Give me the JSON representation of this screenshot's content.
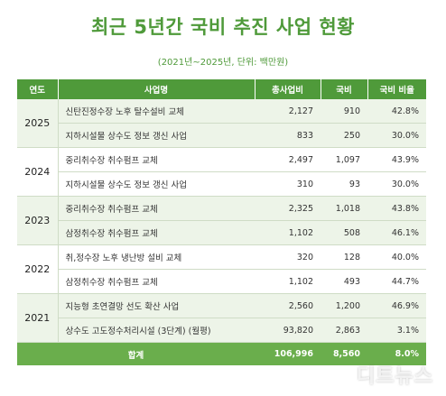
{
  "title": "최근 5년간 국비 추진 사업 현황",
  "subtitle": "(2021년~2025년, 단위: 백만원)",
  "columns": [
    "연도",
    "사업명",
    "총사업비",
    "국비",
    "국비 비율"
  ],
  "groups": [
    {
      "year": "2025",
      "rows": [
        {
          "name": "신탄진정수장 노후 탈수설비 교체",
          "total": "2,127",
          "national": "910",
          "ratio": "42.8%"
        },
        {
          "name": "지하시설물 상수도 정보 갱신 사업",
          "total": "833",
          "national": "250",
          "ratio": "30.0%"
        }
      ]
    },
    {
      "year": "2024",
      "rows": [
        {
          "name": "중리취수장 취수펌프 교체",
          "total": "2,497",
          "national": "1,097",
          "ratio": "43.9%"
        },
        {
          "name": "지하시설물 상수도 정보 갱신 사업",
          "total": "310",
          "national": "93",
          "ratio": "30.0%"
        }
      ]
    },
    {
      "year": "2023",
      "rows": [
        {
          "name": "중리취수장 취수펌프 교체",
          "total": "2,325",
          "national": "1,018",
          "ratio": "43.8%"
        },
        {
          "name": "삼정취수장 취수펌프 교체",
          "total": "1,102",
          "national": "508",
          "ratio": "46.1%"
        }
      ]
    },
    {
      "year": "2022",
      "rows": [
        {
          "name": "취,정수장 노후 냉난방 설비 교체",
          "total": "320",
          "national": "128",
          "ratio": "40.0%"
        },
        {
          "name": "삼정취수장 취수펌프 교체",
          "total": "1,102",
          "national": "493",
          "ratio": "44.7%"
        }
      ]
    },
    {
      "year": "2021",
      "rows": [
        {
          "name": "지능형 초연결망 선도 확산 사업",
          "total": "2,560",
          "national": "1,200",
          "ratio": "46.9%"
        },
        {
          "name": "상수도 고도정수처리시설 (3단계) (월평)",
          "total": "93,820",
          "national": "2,863",
          "ratio": "3.1%"
        }
      ]
    }
  ],
  "total_row": {
    "label": "합계",
    "total": "106,996",
    "national": "8,560",
    "ratio": "8.0%"
  },
  "watermark": "디트뉴스",
  "colors": {
    "accent": "#4f9a3a",
    "header_bg": "#4f9a3a",
    "total_bg": "#6aae4c",
    "shade": "#edf4e8"
  }
}
